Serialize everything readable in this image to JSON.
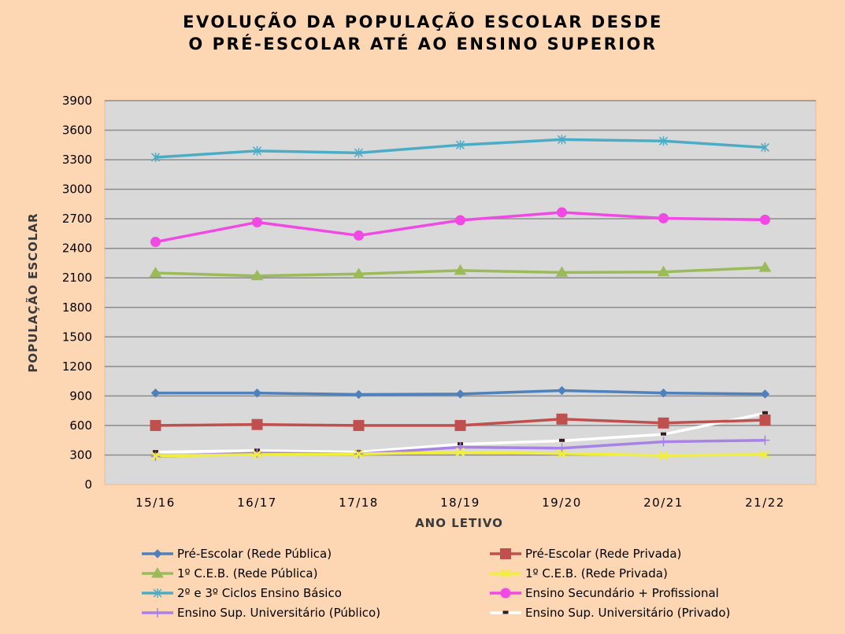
{
  "chart_data": {
    "type": "line",
    "title_lines": [
      "EVOLUÇÃO DA POPULAÇÃO ESCOLAR DESDE",
      "O PRÉ-ESCOLAR ATÉ AO ENSINO SUPERIOR"
    ],
    "xlabel": "ANO LETIVO",
    "ylabel": "POPULAÇÃO ESCOLAR",
    "categories": [
      "15/16",
      "16/17",
      "17/18",
      "18/19",
      "19/20",
      "20/21",
      "21/22"
    ],
    "ylim": [
      0,
      3900
    ],
    "yticks": [
      0,
      300,
      600,
      900,
      1200,
      1500,
      1800,
      2100,
      2400,
      2700,
      3000,
      3300,
      3600,
      3900
    ],
    "grid": true,
    "legend_position": "bottom",
    "series": [
      {
        "name": "Pré-Escolar (Rede Pública)",
        "color": "#4f81bd",
        "marker": "diamond",
        "values": [
          930,
          930,
          915,
          920,
          955,
          930,
          920
        ]
      },
      {
        "name": "Pré-Escolar (Rede Privada)",
        "color": "#c0504d",
        "marker": "square",
        "values": [
          600,
          610,
          600,
          600,
          665,
          625,
          655
        ]
      },
      {
        "name": "1º C.E.B. (Rede Pública)",
        "color": "#9bbb59",
        "marker": "triangle",
        "values": [
          2150,
          2120,
          2140,
          2175,
          2155,
          2160,
          2205
        ]
      },
      {
        "name": "1º C.E.B.  (Rede Privada)",
        "color": "#f2ee3c",
        "marker": "x",
        "values": [
          290,
          305,
          310,
          330,
          315,
          295,
          305
        ]
      },
      {
        "name": "2º e 3º Ciclos Ensino Básico",
        "color": "#4bacc6",
        "marker": "asterisk",
        "values": [
          3325,
          3390,
          3370,
          3450,
          3505,
          3490,
          3425
        ]
      },
      {
        "name": "Ensino Secundário + Profissional",
        "color": "#f149e4",
        "marker": "circle",
        "values": [
          2465,
          2665,
          2530,
          2685,
          2765,
          2705,
          2690
        ]
      },
      {
        "name": "Ensino Sup. Universitário  (Público)",
        "color": "#a882e6",
        "marker": "plus",
        "values": [
          285,
          320,
          310,
          380,
          370,
          435,
          450
        ]
      },
      {
        "name": "Ensino Sup. Universitário  (Privado)",
        "color": "#ffffff",
        "marker": "dash",
        "values": [
          330,
          345,
          330,
          410,
          445,
          510,
          725
        ]
      }
    ]
  }
}
